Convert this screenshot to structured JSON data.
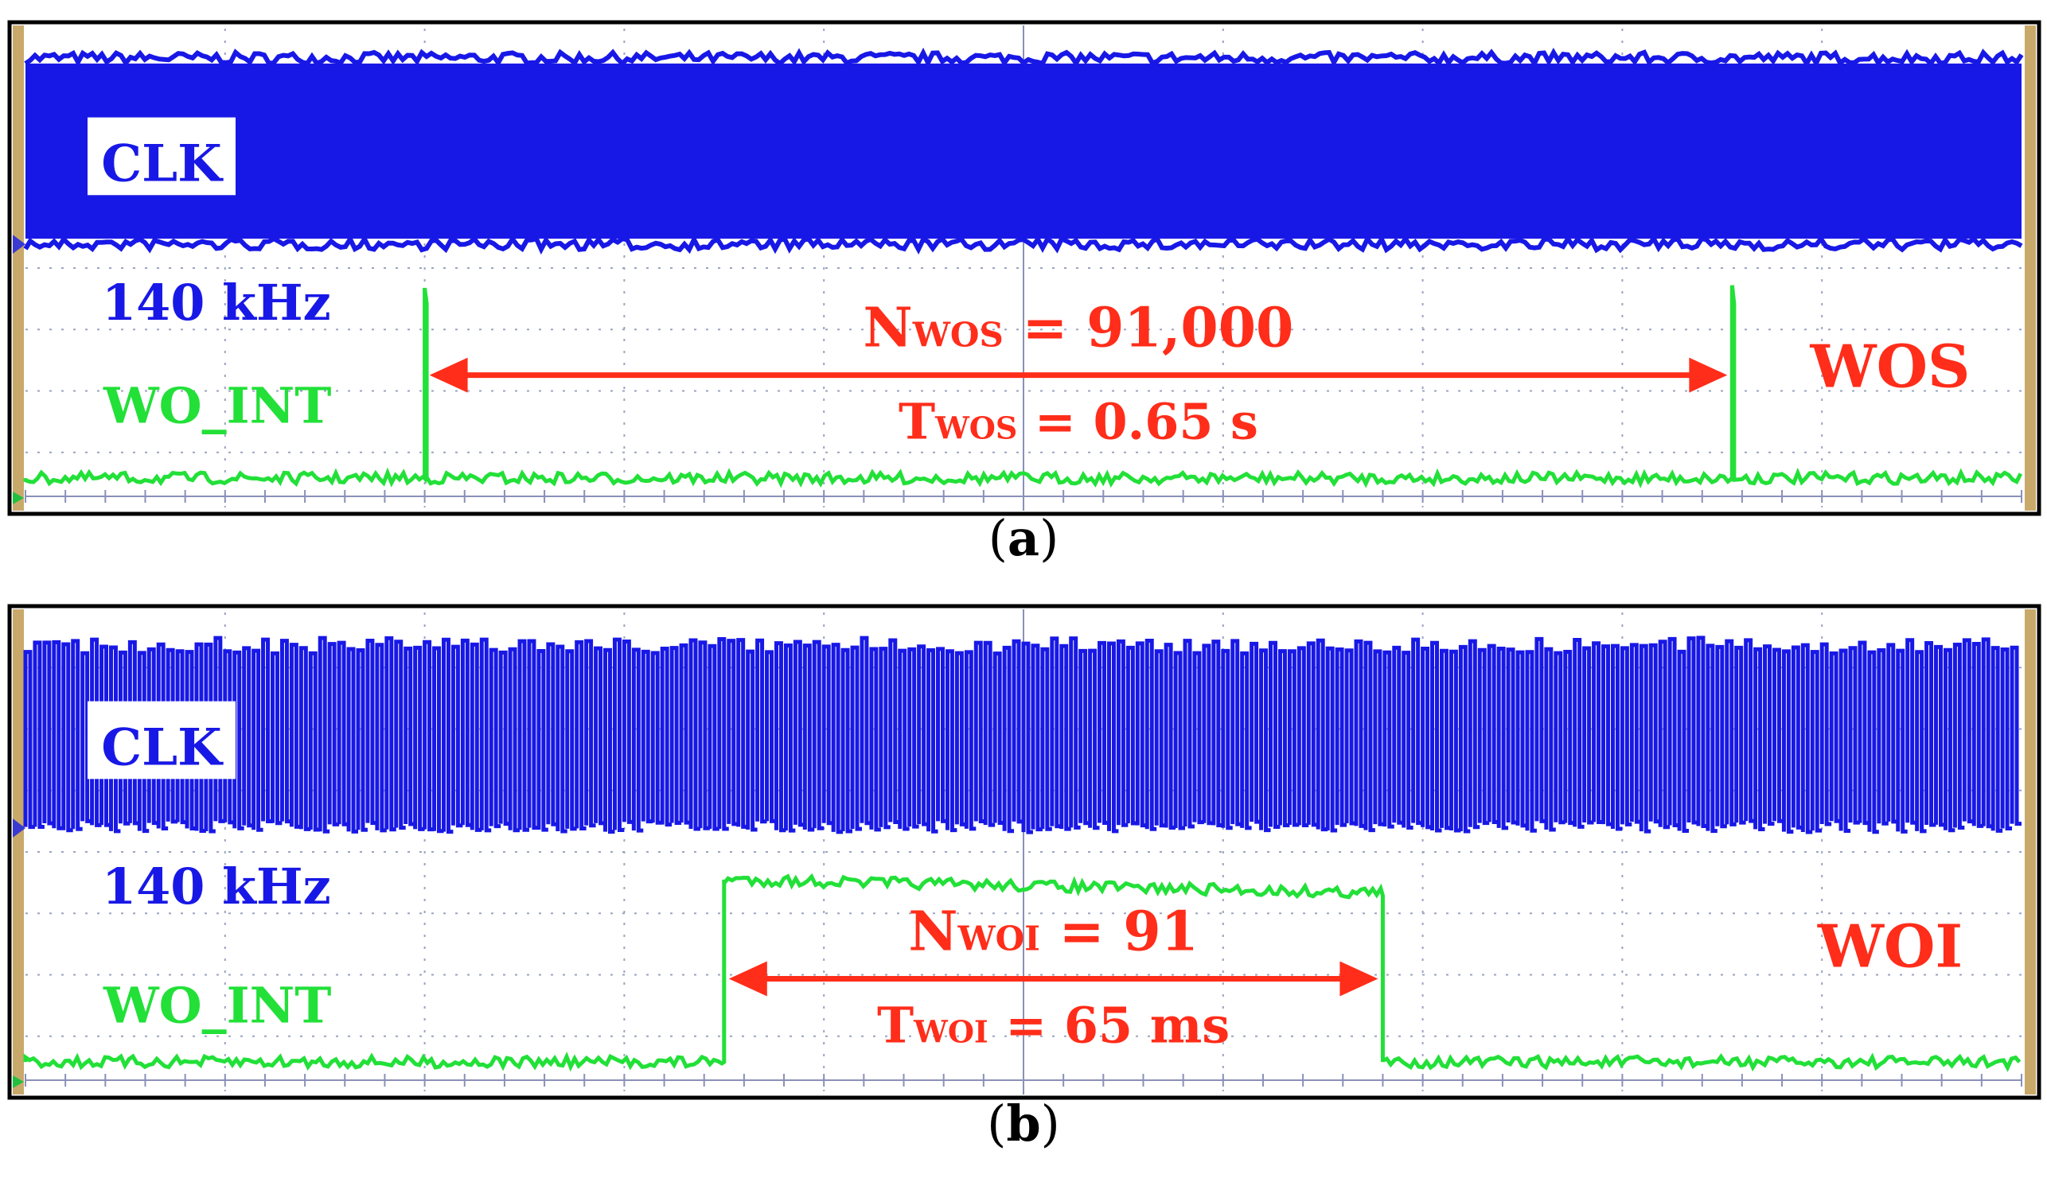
{
  "chart_data": [
    {
      "type": "oscilloscope",
      "panel_label": "a",
      "mode": "WOS",
      "time_divisions": 10,
      "clk": {
        "label": "CLK",
        "frequency_text": "140 kHz",
        "color": "#1818e6",
        "appearance": "dense"
      },
      "wo_int": {
        "label": "WO_INT",
        "color": "#22e038",
        "pulses": [
          {
            "start_div": 2.0,
            "end_div": 2.01
          },
          {
            "start_div": 8.55,
            "end_div": 8.56
          }
        ]
      },
      "annotation": {
        "n_prefix": "N",
        "n_sub": "WOS",
        "n_value": " = 91,000",
        "t_prefix": "T",
        "t_sub": "WOS",
        "t_value": " = 0.65 s",
        "mode_label": "WOS",
        "color": "#ff2d1a",
        "arrow_from_div": 2.0,
        "arrow_to_div": 8.55
      }
    },
    {
      "type": "oscilloscope",
      "panel_label": "b",
      "mode": "WOI",
      "time_divisions": 10,
      "clk": {
        "label": "CLK",
        "frequency_text": "140 kHz",
        "color": "#1818e6",
        "appearance": "bursts"
      },
      "wo_int": {
        "label": "WO_INT",
        "color": "#22e038",
        "pulses": [
          {
            "start_div": 3.5,
            "end_div": 6.8
          }
        ]
      },
      "annotation": {
        "n_prefix": "N",
        "n_sub": "WOI",
        "n_value": " = 91",
        "t_prefix": "T",
        "t_sub": "WOI",
        "t_value": " = 65 ms",
        "mode_label": "WOI",
        "color": "#ff2d1a",
        "arrow_from_div": 3.5,
        "arrow_to_div": 6.8
      }
    }
  ]
}
